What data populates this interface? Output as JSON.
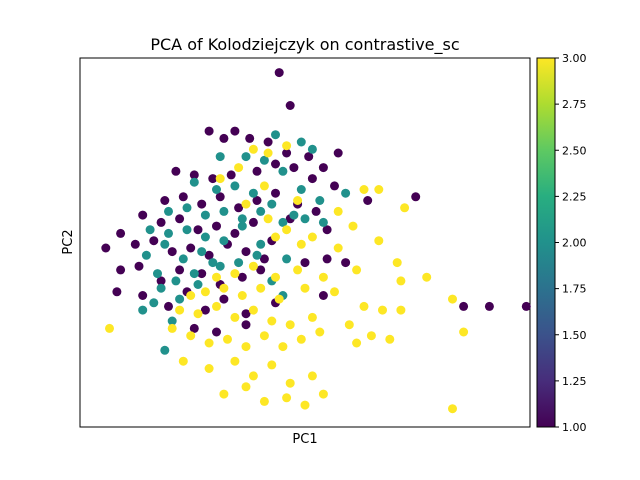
{
  "chart_data": {
    "type": "scatter",
    "title": "PCA of Kolodziejczyk on contrastive_sc",
    "xlabel": "PC1",
    "ylabel": "PC2",
    "xticks": "none",
    "yticks": "none",
    "xlim": [
      -4.1,
      8.1
    ],
    "ylim": [
      -4.8,
      5.3
    ],
    "grid": false,
    "colorbar": {
      "colormap": "viridis",
      "range": [
        1.0,
        3.0
      ],
      "ticks": [
        "1.00",
        "1.25",
        "1.50",
        "1.75",
        "2.00",
        "2.25",
        "2.50",
        "2.75",
        "3.00"
      ]
    },
    "clusters": [
      {
        "value": 1,
        "color": "#440154",
        "points": [
          [
            1.3,
            4.9
          ],
          [
            1.6,
            4.0
          ],
          [
            -0.6,
            3.3
          ],
          [
            -0.2,
            3.1
          ],
          [
            0.1,
            3.3
          ],
          [
            0.5,
            3.1
          ],
          [
            1.0,
            3.0
          ],
          [
            1.5,
            2.7
          ],
          [
            2.1,
            2.6
          ],
          [
            2.5,
            2.3
          ],
          [
            2.9,
            2.7
          ],
          [
            -1.5,
            2.2
          ],
          [
            -1.0,
            2.1
          ],
          [
            -0.5,
            2.0
          ],
          [
            0.0,
            2.1
          ],
          [
            0.7,
            2.2
          ],
          [
            1.2,
            2.4
          ],
          [
            1.7,
            2.3
          ],
          [
            2.2,
            2.0
          ],
          [
            2.8,
            1.8
          ],
          [
            3.7,
            1.4
          ],
          [
            5.0,
            1.5
          ],
          [
            -1.8,
            1.4
          ],
          [
            -1.3,
            1.5
          ],
          [
            -0.8,
            1.3
          ],
          [
            -0.3,
            1.5
          ],
          [
            0.2,
            1.2
          ],
          [
            0.7,
            1.4
          ],
          [
            1.2,
            1.6
          ],
          [
            1.8,
            1.3
          ],
          [
            2.3,
            1.1
          ],
          [
            1.6,
            0.9
          ],
          [
            -2.4,
            1.0
          ],
          [
            -1.9,
            0.8
          ],
          [
            -1.4,
            0.9
          ],
          [
            -0.9,
            0.6
          ],
          [
            -0.4,
            0.7
          ],
          [
            0.1,
            0.5
          ],
          [
            0.6,
            0.8
          ],
          [
            1.1,
            0.3
          ],
          [
            2.6,
            0.6
          ],
          [
            -3.0,
            0.5
          ],
          [
            -2.6,
            0.2
          ],
          [
            -2.1,
            0.3
          ],
          [
            -1.6,
            0.0
          ],
          [
            -1.1,
            0.1
          ],
          [
            -0.6,
            -0.1
          ],
          [
            -0.1,
            0.2
          ],
          [
            0.4,
            0.0
          ],
          [
            0.9,
            -0.2
          ],
          [
            2.0,
            -0.3
          ],
          [
            2.6,
            -0.2
          ],
          [
            3.1,
            -0.3
          ],
          [
            -3.4,
            0.1
          ],
          [
            -3.0,
            -0.5
          ],
          [
            -2.5,
            -0.4
          ],
          [
            -1.9,
            -0.8
          ],
          [
            -1.4,
            -0.5
          ],
          [
            -0.8,
            -0.6
          ],
          [
            -0.3,
            -0.9
          ],
          [
            0.3,
            -0.7
          ],
          [
            0.8,
            -0.5
          ],
          [
            -3.1,
            -1.1
          ],
          [
            -2.4,
            -1.2
          ],
          [
            -1.7,
            -1.5
          ],
          [
            -1.2,
            -1.1
          ],
          [
            -0.7,
            -1.6
          ],
          [
            -0.2,
            -1.3
          ],
          [
            0.4,
            -1.7
          ],
          [
            1.2,
            -1.4
          ],
          [
            2.5,
            -1.2
          ],
          [
            -1.0,
            -2.1
          ],
          [
            -0.4,
            -2.2
          ],
          [
            0.4,
            -2.0
          ],
          [
            6.3,
            -1.5
          ],
          [
            7.0,
            -1.5
          ],
          [
            8.0,
            -1.5
          ]
        ]
      },
      {
        "value": 2,
        "color": "#21918c",
        "points": [
          [
            1.9,
            3.0
          ],
          [
            2.2,
            2.8
          ],
          [
            -0.3,
            2.6
          ],
          [
            0.9,
            2.5
          ],
          [
            1.4,
            2.2
          ],
          [
            1.2,
            3.2
          ],
          [
            0.4,
            2.6
          ],
          [
            -1.0,
            1.9
          ],
          [
            -0.4,
            1.7
          ],
          [
            0.1,
            1.8
          ],
          [
            0.6,
            1.6
          ],
          [
            1.1,
            1.3
          ],
          [
            1.9,
            1.7
          ],
          [
            2.4,
            1.4
          ],
          [
            3.1,
            1.6
          ],
          [
            -1.7,
            1.1
          ],
          [
            -1.2,
            1.2
          ],
          [
            -0.7,
            1.0
          ],
          [
            -0.2,
            1.1
          ],
          [
            0.3,
            0.9
          ],
          [
            0.8,
            1.1
          ],
          [
            1.4,
            0.8
          ],
          [
            2.0,
            0.9
          ],
          [
            2.5,
            0.8
          ],
          [
            1.7,
            1.0
          ],
          [
            -2.2,
            0.6
          ],
          [
            -1.7,
            0.5
          ],
          [
            -1.2,
            0.6
          ],
          [
            -0.7,
            0.4
          ],
          [
            -0.2,
            0.3
          ],
          [
            0.3,
            0.7
          ],
          [
            0.8,
            0.2
          ],
          [
            -2.3,
            -0.1
          ],
          [
            -1.8,
            0.2
          ],
          [
            -1.3,
            -0.2
          ],
          [
            -0.8,
            0.0
          ],
          [
            -0.3,
            -0.4
          ],
          [
            0.2,
            -0.3
          ],
          [
            0.7,
            -0.1
          ],
          [
            1.5,
            -0.2
          ],
          [
            -2.0,
            -0.6
          ],
          [
            -1.5,
            -0.8
          ],
          [
            -1.0,
            -0.6
          ],
          [
            -0.5,
            -0.3
          ],
          [
            -1.9,
            -1.0
          ],
          [
            -1.4,
            -1.3
          ],
          [
            -0.9,
            -0.9
          ],
          [
            1.1,
            -0.8
          ],
          [
            -2.4,
            -1.6
          ],
          [
            -1.6,
            -1.9
          ],
          [
            -2.1,
            -1.4
          ],
          [
            1.4,
            -1.2
          ],
          [
            -1.8,
            -2.7
          ]
        ]
      },
      {
        "value": 3,
        "color": "#fde725",
        "points": [
          [
            0.6,
            2.8
          ],
          [
            1.0,
            2.7
          ],
          [
            -0.3,
            2.0
          ],
          [
            1.5,
            2.9
          ],
          [
            0.2,
            2.3
          ],
          [
            3.6,
            1.7
          ],
          [
            4.0,
            1.7
          ],
          [
            4.7,
            1.2
          ],
          [
            2.9,
            1.1
          ],
          [
            1.8,
            1.4
          ],
          [
            0.9,
            1.8
          ],
          [
            0.4,
            1.3
          ],
          [
            1.0,
            0.9
          ],
          [
            1.5,
            0.6
          ],
          [
            2.2,
            0.4
          ],
          [
            3.3,
            0.7
          ],
          [
            4.0,
            0.3
          ],
          [
            2.9,
            0.1
          ],
          [
            1.9,
            0.2
          ],
          [
            1.2,
            0.4
          ],
          [
            4.5,
            -0.3
          ],
          [
            5.3,
            -0.7
          ],
          [
            4.6,
            -0.8
          ],
          [
            3.4,
            -0.5
          ],
          [
            2.5,
            -0.7
          ],
          [
            1.8,
            -0.5
          ],
          [
            1.2,
            -0.7
          ],
          [
            0.6,
            -0.4
          ],
          [
            0.1,
            -0.6
          ],
          [
            -0.4,
            -0.7
          ],
          [
            -1.1,
            -1.2
          ],
          [
            -0.7,
            -1.1
          ],
          [
            -0.2,
            -1.0
          ],
          [
            0.3,
            -1.2
          ],
          [
            0.8,
            -1.0
          ],
          [
            1.3,
            -1.3
          ],
          [
            2.0,
            -1.0
          ],
          [
            2.8,
            -1.1
          ],
          [
            3.6,
            -1.5
          ],
          [
            4.1,
            -1.6
          ],
          [
            4.6,
            -1.6
          ],
          [
            6.0,
            -1.3
          ],
          [
            6.3,
            -2.2
          ],
          [
            -1.4,
            -1.6
          ],
          [
            -0.9,
            -1.7
          ],
          [
            -0.4,
            -1.5
          ],
          [
            0.1,
            -1.8
          ],
          [
            0.6,
            -1.6
          ],
          [
            1.1,
            -1.9
          ],
          [
            1.6,
            -2.0
          ],
          [
            2.2,
            -1.8
          ],
          [
            3.2,
            -2.0
          ],
          [
            3.8,
            -2.3
          ],
          [
            4.3,
            -2.4
          ],
          [
            -3.3,
            -2.1
          ],
          [
            -1.6,
            -2.1
          ],
          [
            -1.1,
            -2.3
          ],
          [
            -0.6,
            -2.5
          ],
          [
            -0.1,
            -2.4
          ],
          [
            0.4,
            -2.6
          ],
          [
            0.9,
            -2.3
          ],
          [
            1.4,
            -2.6
          ],
          [
            1.9,
            -2.4
          ],
          [
            2.4,
            -2.2
          ],
          [
            3.4,
            -2.5
          ],
          [
            -1.3,
            -3.0
          ],
          [
            -0.6,
            -3.2
          ],
          [
            0.1,
            -3.0
          ],
          [
            0.6,
            -3.4
          ],
          [
            1.1,
            -3.1
          ],
          [
            1.6,
            -3.6
          ],
          [
            2.2,
            -3.4
          ],
          [
            -0.2,
            -3.9
          ],
          [
            0.4,
            -3.7
          ],
          [
            0.9,
            -4.1
          ],
          [
            1.5,
            -4.0
          ],
          [
            2.0,
            -4.2
          ],
          [
            2.5,
            -3.9
          ],
          [
            6.0,
            -4.3
          ]
        ]
      }
    ]
  }
}
